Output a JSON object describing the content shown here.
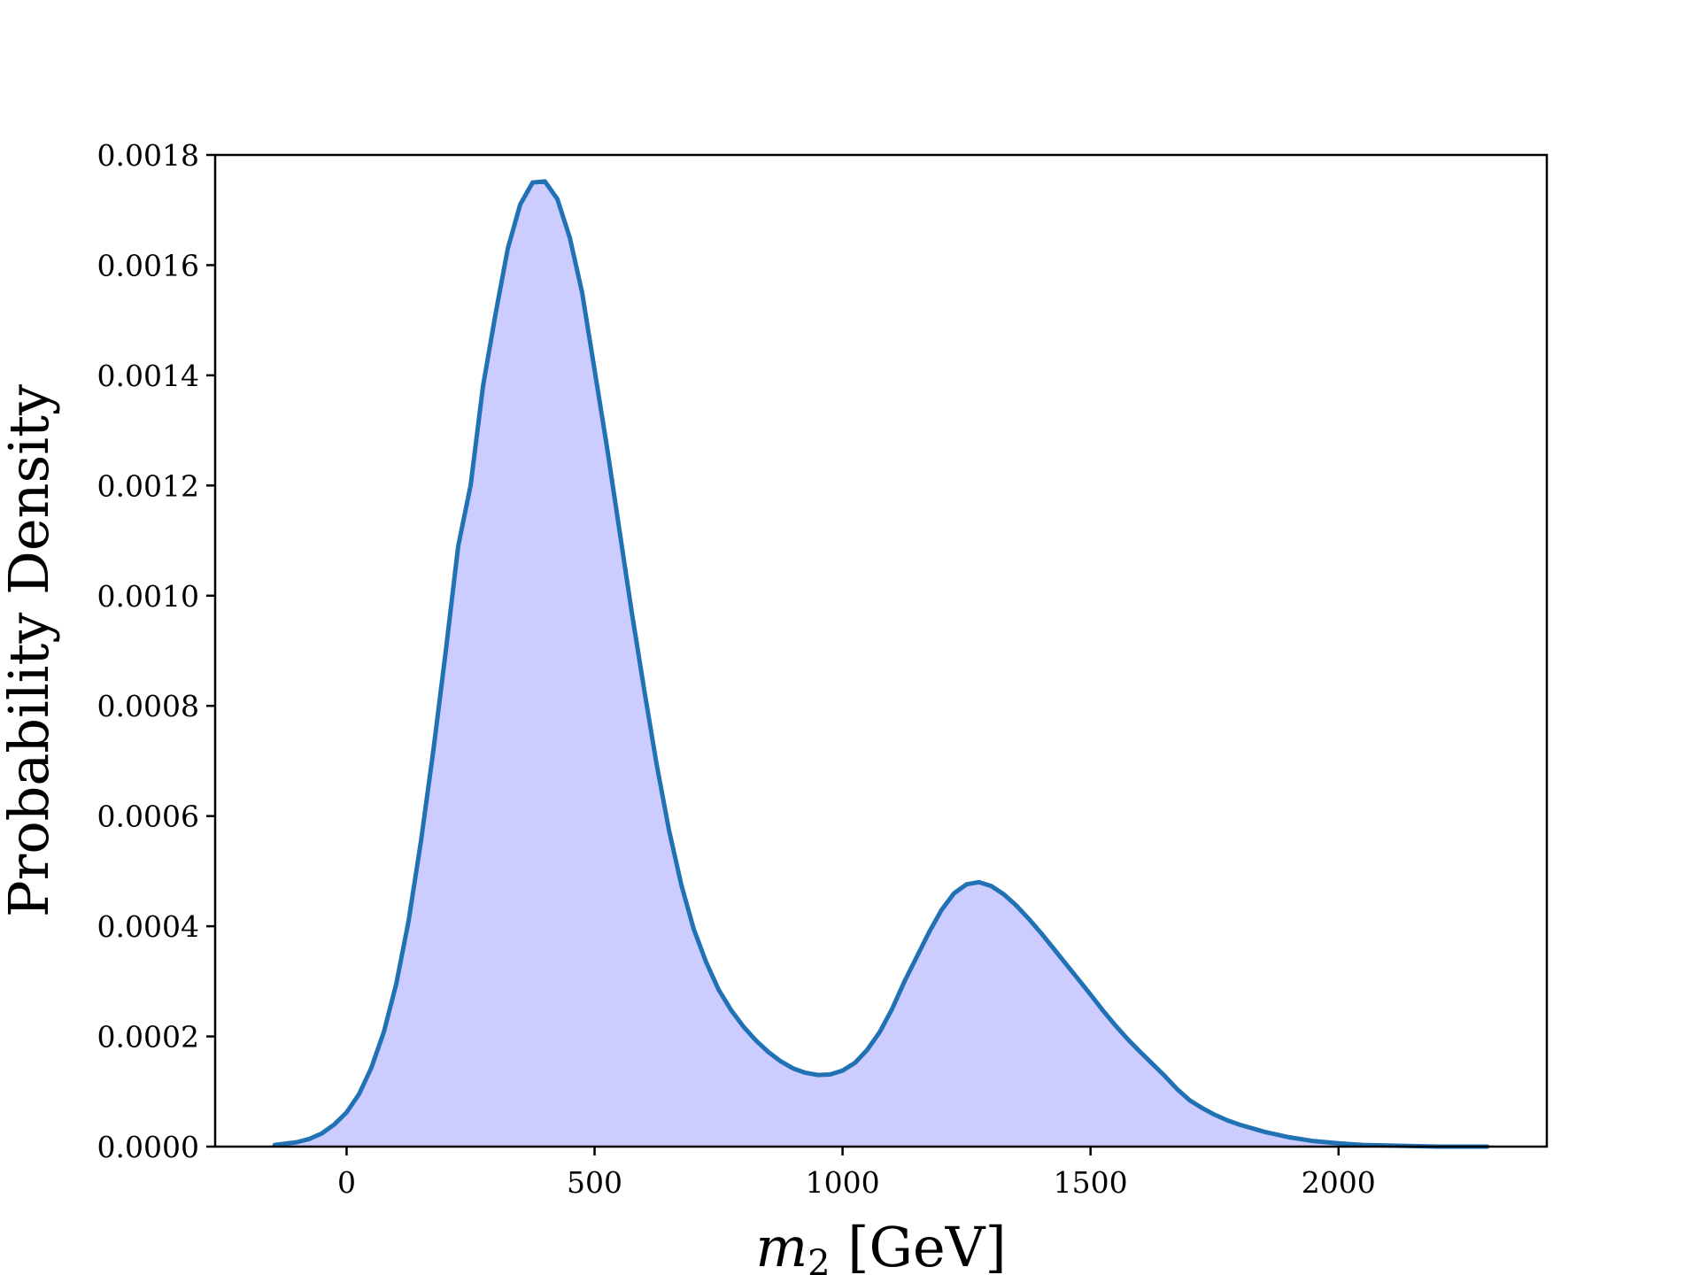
{
  "chart_data": {
    "type": "area",
    "title": "",
    "xlabel": "m",
    "xlabel_subscript": "2",
    "xlabel_unit": " [GeV]",
    "ylabel": "Probability Density",
    "xlim": [
      -265,
      2420
    ],
    "ylim": [
      0,
      0.0018
    ],
    "xticks": [
      0,
      500,
      1000,
      1500,
      2000
    ],
    "xtick_labels": [
      "0",
      "500",
      "1000",
      "1500",
      "2000"
    ],
    "yticks": [
      0,
      0.0002,
      0.0004,
      0.0006,
      0.0008,
      0.001,
      0.0012,
      0.0014,
      0.0016,
      0.0018
    ],
    "ytick_labels": [
      "0.0000",
      "0.0002",
      "0.0004",
      "0.0006",
      "0.0008",
      "0.0010",
      "0.0012",
      "0.0014",
      "0.0016",
      "0.0018"
    ],
    "grid": false,
    "line_color": "#2171b5",
    "fill_color": "#ccccff",
    "series": [
      {
        "x": [
          -145,
          -100,
          -75,
          -50,
          -25,
          0,
          25,
          50,
          75,
          100,
          125,
          150,
          175,
          200,
          225,
          250,
          275,
          300,
          325,
          350,
          375,
          400,
          425,
          450,
          475,
          500,
          525,
          550,
          575,
          600,
          625,
          650,
          675,
          700,
          725,
          750,
          775,
          800,
          825,
          850,
          875,
          900,
          925,
          950,
          975,
          1000,
          1025,
          1050,
          1075,
          1100,
          1125,
          1150,
          1175,
          1200,
          1225,
          1250,
          1275,
          1300,
          1325,
          1350,
          1375,
          1400,
          1425,
          1450,
          1475,
          1500,
          1525,
          1550,
          1575,
          1600,
          1625,
          1650,
          1675,
          1700,
          1725,
          1750,
          1775,
          1800,
          1850,
          1900,
          1950,
          2000,
          2050,
          2100,
          2150,
          2200,
          2250,
          2300
        ],
        "y": [
          3e-06,
          8e-06,
          1.4e-05,
          2.4e-05,
          4e-05,
          6.2e-05,
          9.5e-05,
          0.000143,
          0.000208,
          0.000295,
          0.00041,
          0.000555,
          0.00072,
          0.0009,
          0.00109,
          0.0012,
          0.00138,
          0.00151,
          0.00163,
          0.00171,
          0.00175,
          0.001752,
          0.00172,
          0.00165,
          0.00155,
          0.00141,
          0.00127,
          0.00112,
          0.00097,
          0.00083,
          0.000695,
          0.000575,
          0.000475,
          0.000395,
          0.000335,
          0.000285,
          0.000248,
          0.000218,
          0.000193,
          0.000172,
          0.000155,
          0.000142,
          0.000134,
          0.00013,
          0.000131,
          0.000138,
          0.000152,
          0.000176,
          0.000208,
          0.00025,
          0.0003,
          0.000345,
          0.00039,
          0.00043,
          0.00046,
          0.000476,
          0.00048,
          0.000473,
          0.000458,
          0.000438,
          0.000414,
          0.000388,
          0.00036,
          0.000332,
          0.000304,
          0.000276,
          0.000247,
          0.00022,
          0.000195,
          0.000172,
          0.00015,
          0.000128,
          0.000104,
          8.4e-05,
          7e-05,
          5.8e-05,
          4.8e-05,
          4e-05,
          2.7e-05,
          1.7e-05,
          1e-05,
          6e-06,
          3e-06,
          2e-06,
          1e-06,
          0.0,
          0.0,
          0.0
        ]
      }
    ]
  }
}
